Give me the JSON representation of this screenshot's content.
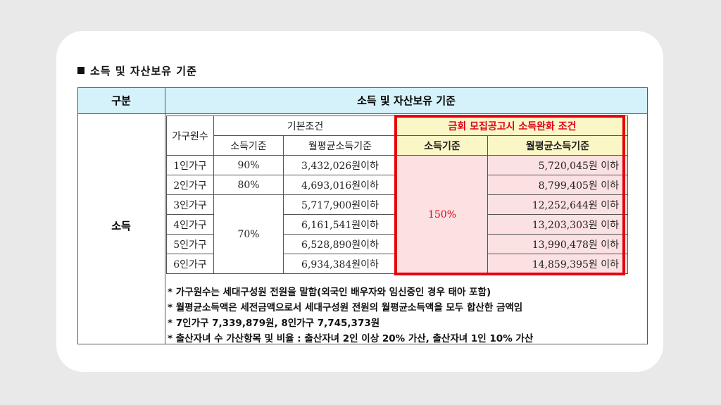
{
  "heading": "소득 및 자산보유 기준",
  "table": {
    "col_gubun": "구분",
    "col_main": "소득 및 자산보유 기준",
    "row_label": "소득",
    "sub": {
      "household": "가구원수",
      "basic": "기본조건",
      "relaxed": "금회 모집공고시 소득완화 조건",
      "income_std": "소득기준",
      "avg_income_std": "월평균소득기준",
      "income_std2": "소득기준",
      "avg_income_std2": "월평균소득기준"
    },
    "rows": [
      {
        "hh": "1인가구",
        "pct": "90%",
        "avg": "3,432,026원이하",
        "relaxed_avg": "5,720,045원 이하"
      },
      {
        "hh": "2인가구",
        "pct": "80%",
        "avg": "4,693,016원이하",
        "relaxed_avg": "8,799,405원 이하"
      },
      {
        "hh": "3인가구",
        "pct": "70%",
        "avg": "5,717,900원이하",
        "relaxed_avg": "12,252,644원 이하"
      },
      {
        "hh": "4인가구",
        "pct": "",
        "avg": "6,161,541원이하",
        "relaxed_avg": "13,203,303원 이하"
      },
      {
        "hh": "5인가구",
        "pct": "",
        "avg": "6,528,890원이하",
        "relaxed_avg": "13,990,478원 이하"
      },
      {
        "hh": "6인가구",
        "pct": "",
        "avg": "6,934,384원이하",
        "relaxed_avg": "14,859,395원 이하"
      }
    ],
    "relaxed_pct": "150%"
  },
  "notes": [
    "* 가구원수는 세대구성원 전원을 말함(외국인 배우자와 임신중인 경우 태아 포함)",
    "* 월평균소득액은 세전금액으로서 세대구성원 전원의 월평균소득액을 모두 합산한 금액임",
    "* 7인가구 7,339,879원, 8인가구 7,745,373원",
    "* 출산자녀 수 가산항목 및 비율 : 출산자녀 2인 이상 20% 가산, 출산자녀 1인 10% 가산"
  ]
}
